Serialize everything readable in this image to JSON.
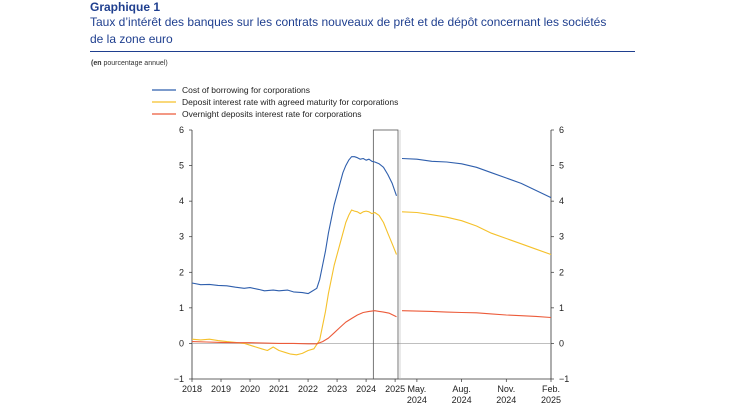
{
  "header": {
    "label": "Graphique 1",
    "title": "Taux d’intérêt des banques sur les contrats nouveaux de prêt et de dépôt concernant les sociétés de la zone euro",
    "unit_prefix": "(en",
    "unit_text": " pourcentage annuel)"
  },
  "colors": {
    "borrowing": "#2f5fad",
    "deposit": "#f5c12b",
    "overnight": "#ec5b3a",
    "axis": "#333333",
    "title": "#1f3f8f"
  },
  "chart_data": {
    "type": "line",
    "title": "Taux d’intérêt des banques sur les contrats nouveaux de prêt et de dépôt concernant les sociétés de la zone euro",
    "ylabel": "pourcentage annuel",
    "ylim": [
      -1,
      6
    ],
    "yticks": [
      "−1",
      "0",
      "1",
      "2",
      "3",
      "4",
      "5",
      "6"
    ],
    "yticks_right": [
      "−1",
      "0",
      "1",
      "2",
      "3",
      "4",
      "5",
      "6"
    ],
    "legend": [
      "Cost of borrowing for corporations",
      "Deposit interest rate with agreed maturity for corporations",
      "Overnight deposits interest rate for corporations"
    ],
    "left_panel": {
      "xlim": [
        2018.0,
        2025.1
      ],
      "xticks": [
        "2018",
        "2019",
        "2020",
        "2021",
        "2022",
        "2023",
        "2024",
        "2025"
      ],
      "highlight": [
        2024.25,
        2025.1
      ],
      "series": [
        {
          "name": "Cost of borrowing for corporations",
          "points": [
            [
              2018.0,
              1.7
            ],
            [
              2018.3,
              1.65
            ],
            [
              2018.6,
              1.66
            ],
            [
              2018.9,
              1.63
            ],
            [
              2019.2,
              1.62
            ],
            [
              2019.5,
              1.58
            ],
            [
              2019.8,
              1.55
            ],
            [
              2020.0,
              1.57
            ],
            [
              2020.3,
              1.52
            ],
            [
              2020.5,
              1.48
            ],
            [
              2020.8,
              1.5
            ],
            [
              2021.0,
              1.48
            ],
            [
              2021.3,
              1.5
            ],
            [
              2021.5,
              1.45
            ],
            [
              2021.8,
              1.43
            ],
            [
              2022.0,
              1.4
            ],
            [
              2022.1,
              1.45
            ],
            [
              2022.3,
              1.55
            ],
            [
              2022.4,
              1.8
            ],
            [
              2022.5,
              2.2
            ],
            [
              2022.6,
              2.6
            ],
            [
              2022.7,
              3.1
            ],
            [
              2022.8,
              3.5
            ],
            [
              2022.9,
              3.9
            ],
            [
              2023.0,
              4.2
            ],
            [
              2023.1,
              4.5
            ],
            [
              2023.2,
              4.8
            ],
            [
              2023.3,
              5.0
            ],
            [
              2023.4,
              5.15
            ],
            [
              2023.5,
              5.25
            ],
            [
              2023.6,
              5.25
            ],
            [
              2023.7,
              5.22
            ],
            [
              2023.8,
              5.18
            ],
            [
              2023.9,
              5.2
            ],
            [
              2024.0,
              5.15
            ],
            [
              2024.1,
              5.18
            ],
            [
              2024.2,
              5.12
            ],
            [
              2024.3,
              5.1
            ],
            [
              2024.45,
              5.05
            ],
            [
              2024.6,
              4.95
            ],
            [
              2024.75,
              4.75
            ],
            [
              2024.9,
              4.5
            ],
            [
              2025.05,
              4.15
            ]
          ]
        },
        {
          "name": "Deposit interest rate with agreed maturity for corporations",
          "points": [
            [
              2018.0,
              0.12
            ],
            [
              2018.3,
              0.1
            ],
            [
              2018.6,
              0.12
            ],
            [
              2018.9,
              0.08
            ],
            [
              2019.2,
              0.05
            ],
            [
              2019.5,
              0.03
            ],
            [
              2019.8,
              0.0
            ],
            [
              2020.0,
              -0.05
            ],
            [
              2020.2,
              -0.1
            ],
            [
              2020.4,
              -0.15
            ],
            [
              2020.6,
              -0.2
            ],
            [
              2020.8,
              -0.1
            ],
            [
              2021.0,
              -0.2
            ],
            [
              2021.2,
              -0.25
            ],
            [
              2021.4,
              -0.3
            ],
            [
              2021.6,
              -0.32
            ],
            [
              2021.8,
              -0.28
            ],
            [
              2022.0,
              -0.2
            ],
            [
              2022.2,
              -0.15
            ],
            [
              2022.4,
              0.1
            ],
            [
              2022.5,
              0.5
            ],
            [
              2022.6,
              0.9
            ],
            [
              2022.7,
              1.4
            ],
            [
              2022.8,
              1.8
            ],
            [
              2022.9,
              2.2
            ],
            [
              2023.0,
              2.5
            ],
            [
              2023.1,
              2.8
            ],
            [
              2023.2,
              3.1
            ],
            [
              2023.3,
              3.4
            ],
            [
              2023.4,
              3.6
            ],
            [
              2023.5,
              3.75
            ],
            [
              2023.6,
              3.72
            ],
            [
              2023.7,
              3.7
            ],
            [
              2023.8,
              3.65
            ],
            [
              2023.9,
              3.7
            ],
            [
              2024.0,
              3.72
            ],
            [
              2024.1,
              3.7
            ],
            [
              2024.2,
              3.65
            ],
            [
              2024.3,
              3.68
            ],
            [
              2024.45,
              3.6
            ],
            [
              2024.6,
              3.4
            ],
            [
              2024.75,
              3.1
            ],
            [
              2024.9,
              2.8
            ],
            [
              2025.05,
              2.5
            ]
          ]
        },
        {
          "name": "Overnight deposits interest rate for corporations",
          "points": [
            [
              2018.0,
              0.05
            ],
            [
              2018.5,
              0.04
            ],
            [
              2019.0,
              0.03
            ],
            [
              2019.5,
              0.02
            ],
            [
              2020.0,
              0.02
            ],
            [
              2020.5,
              0.01
            ],
            [
              2021.0,
              0.0
            ],
            [
              2021.5,
              0.0
            ],
            [
              2022.0,
              -0.01
            ],
            [
              2022.3,
              -0.01
            ],
            [
              2022.5,
              0.05
            ],
            [
              2022.7,
              0.15
            ],
            [
              2022.9,
              0.3
            ],
            [
              2023.1,
              0.45
            ],
            [
              2023.3,
              0.6
            ],
            [
              2023.5,
              0.7
            ],
            [
              2023.7,
              0.8
            ],
            [
              2023.9,
              0.87
            ],
            [
              2024.1,
              0.9
            ],
            [
              2024.3,
              0.92
            ],
            [
              2024.45,
              0.9
            ],
            [
              2024.6,
              0.88
            ],
            [
              2024.8,
              0.85
            ],
            [
              2025.05,
              0.75
            ]
          ]
        }
      ]
    },
    "right_panel": {
      "xlim": [
        0,
        10
      ],
      "xticks": [
        {
          "at": 1,
          "line1": "May.",
          "line2": "2024"
        },
        {
          "at": 4,
          "line1": "Aug.",
          "line2": "2024"
        },
        {
          "at": 7,
          "line1": "Nov.",
          "line2": "2024"
        },
        {
          "at": 10,
          "line1": "Feb.",
          "line2": "2025"
        }
      ],
      "series": [
        {
          "name": "Cost of borrowing for corporations",
          "points": [
            [
              0,
              5.2
            ],
            [
              1,
              5.18
            ],
            [
              2,
              5.12
            ],
            [
              3,
              5.1
            ],
            [
              4,
              5.05
            ],
            [
              5,
              4.95
            ],
            [
              6,
              4.8
            ],
            [
              7,
              4.65
            ],
            [
              8,
              4.5
            ],
            [
              9,
              4.3
            ],
            [
              10,
              4.1
            ]
          ]
        },
        {
          "name": "Deposit interest rate with agreed maturity for corporations",
          "points": [
            [
              0,
              3.7
            ],
            [
              1,
              3.68
            ],
            [
              2,
              3.62
            ],
            [
              3,
              3.55
            ],
            [
              4,
              3.45
            ],
            [
              5,
              3.3
            ],
            [
              6,
              3.1
            ],
            [
              7,
              2.95
            ],
            [
              8,
              2.8
            ],
            [
              9,
              2.65
            ],
            [
              10,
              2.5
            ]
          ]
        },
        {
          "name": "Overnight deposits interest rate for corporations",
          "points": [
            [
              0,
              0.92
            ],
            [
              1,
              0.91
            ],
            [
              2,
              0.9
            ],
            [
              3,
              0.88
            ],
            [
              4,
              0.87
            ],
            [
              5,
              0.86
            ],
            [
              6,
              0.83
            ],
            [
              7,
              0.8
            ],
            [
              8,
              0.78
            ],
            [
              9,
              0.76
            ],
            [
              10,
              0.73
            ]
          ]
        }
      ]
    }
  }
}
